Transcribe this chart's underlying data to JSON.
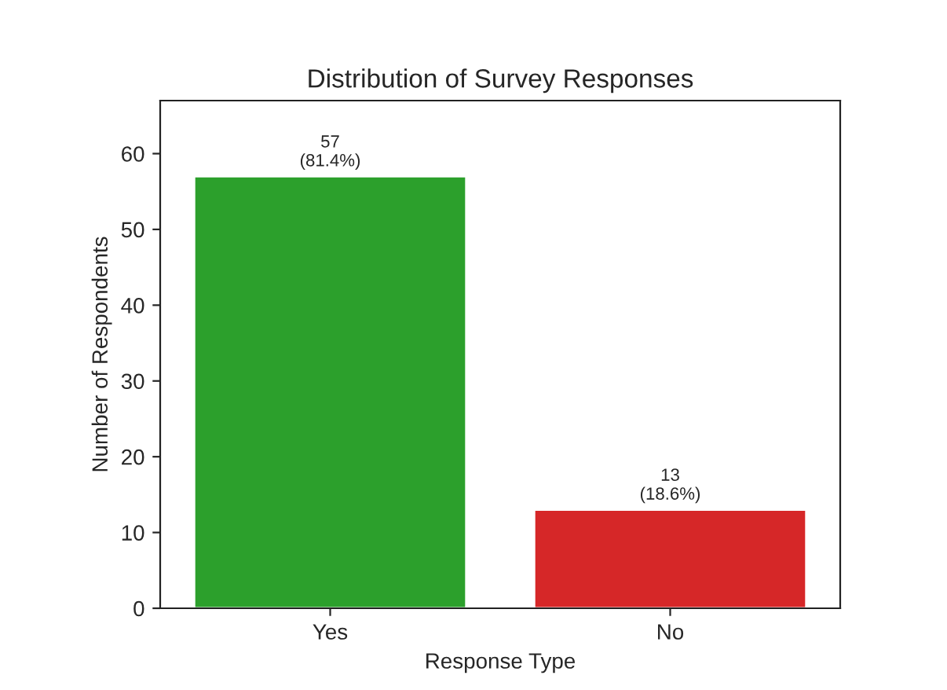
{
  "chart_data": {
    "type": "bar",
    "title": "Distribution of Survey Responses",
    "xlabel": "Response Type",
    "ylabel": "Number of Respondents",
    "categories": [
      "Yes",
      "No"
    ],
    "values": [
      57,
      13
    ],
    "colors": [
      "#2ca02c",
      "#d62728"
    ],
    "value_labels": [
      "57\n(81.4%)",
      "13\n(18.6%)"
    ],
    "ylim": [
      0,
      67
    ],
    "yticks": [
      0,
      10,
      20,
      30,
      40,
      50,
      60
    ],
    "grid": false
  }
}
